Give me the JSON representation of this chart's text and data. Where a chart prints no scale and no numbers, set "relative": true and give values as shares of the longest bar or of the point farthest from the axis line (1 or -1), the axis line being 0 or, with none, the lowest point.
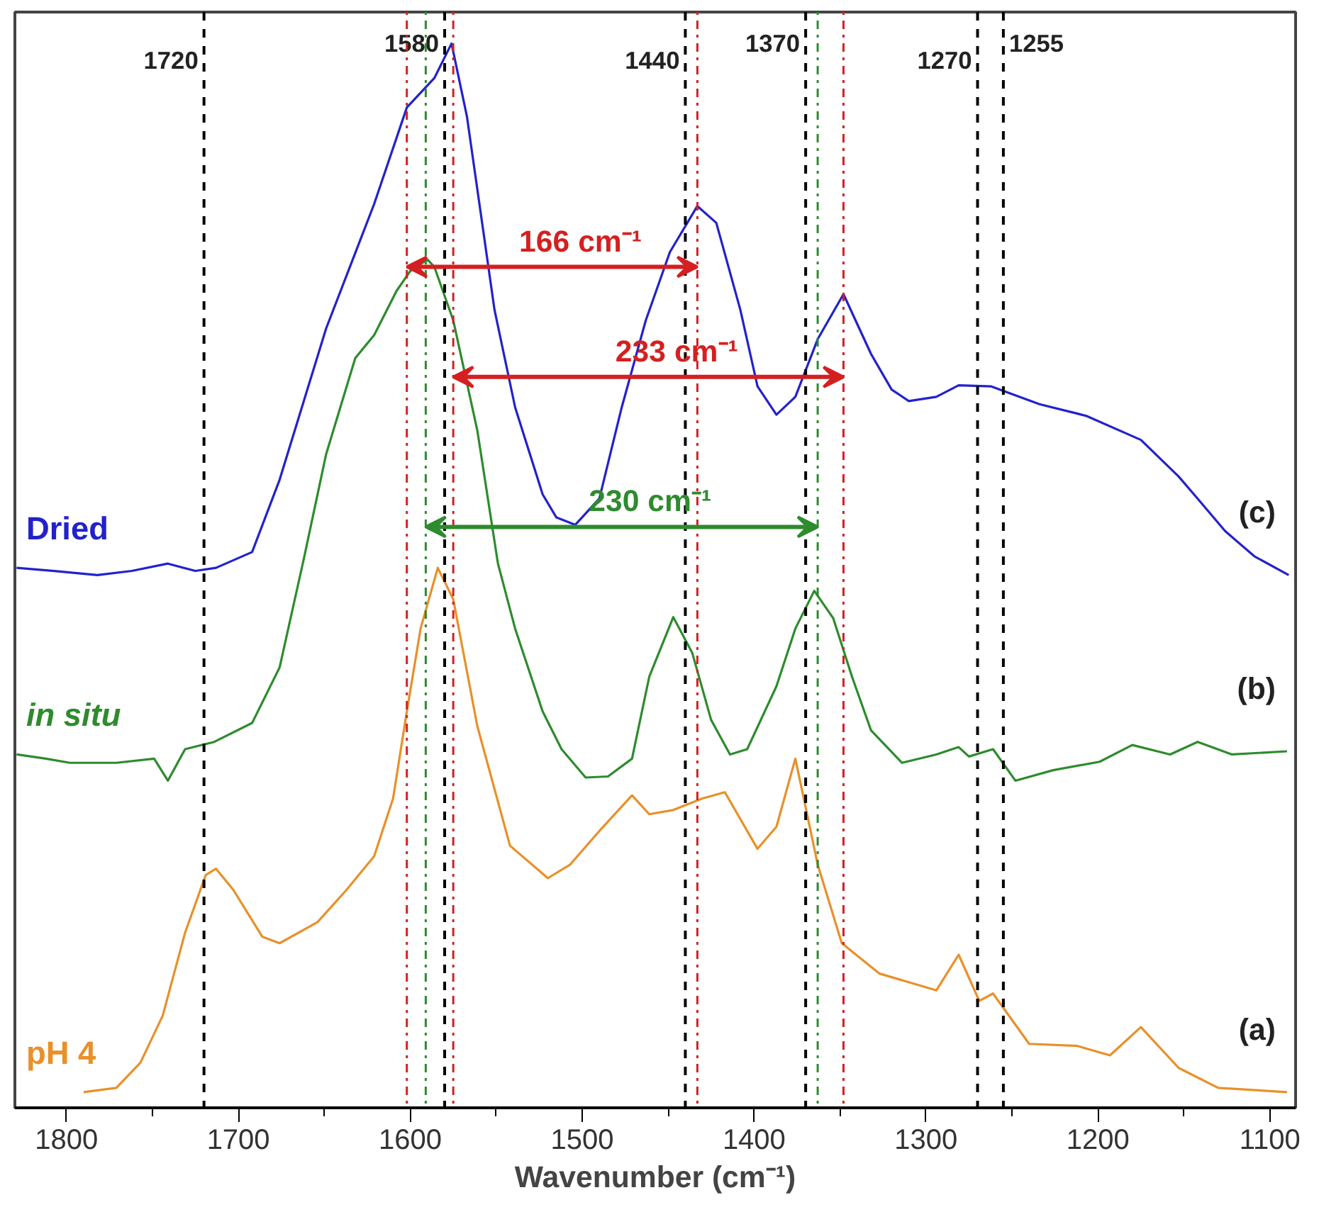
{
  "chart_data": {
    "type": "line",
    "relative": true,
    "xlabel": "Wavenumber (cm⁻¹)",
    "xlim": [
      1830,
      1085
    ],
    "xticks": [
      1800,
      {
        "value": 1750,
        "label": null
      },
      1700,
      {
        "value": 1650,
        "label": null
      },
      1600,
      {
        "value": 1550,
        "label": null
      },
      1500,
      {
        "value": 1450,
        "label": null
      },
      1400,
      {
        "value": 1350,
        "label": null
      },
      1300,
      {
        "value": 1250,
        "label": null
      },
      1200,
      {
        "value": 1150,
        "label": null
      },
      1100
    ],
    "grid": false,
    "line_style": "solid",
    "marker": "none",
    "series": [
      {
        "name": "Dried",
        "color": "#2222cc",
        "x": [
          1829,
          1807,
          1782,
          1762,
          1741,
          1725,
          1713,
          1692,
          1676,
          1649,
          1621,
          1602,
          1586,
          1576,
          1567,
          1559,
          1551,
          1539,
          1523,
          1515,
          1504,
          1490,
          1477,
          1463,
          1449,
          1433,
          1422,
          1408,
          1398,
          1387,
          1376,
          1363,
          1348,
          1332,
          1320,
          1310,
          1294,
          1281,
          1262,
          1234,
          1207,
          1175,
          1153,
          1142,
          1126,
          1109,
          1089
        ],
        "values": [
          0.5,
          0.497,
          0.493,
          0.497,
          0.504,
          0.497,
          0.5,
          0.515,
          0.584,
          0.728,
          0.847,
          0.939,
          0.967,
          1.0,
          0.93,
          0.838,
          0.746,
          0.653,
          0.57,
          0.548,
          0.541,
          0.566,
          0.653,
          0.736,
          0.801,
          0.845,
          0.829,
          0.746,
          0.673,
          0.646,
          0.663,
          0.718,
          0.761,
          0.704,
          0.67,
          0.659,
          0.663,
          0.674,
          0.673,
          0.656,
          0.645,
          0.622,
          0.587,
          0.566,
          0.535,
          0.511,
          0.493
        ]
      },
      {
        "name": "in situ",
        "color": "#2e8b2e",
        "x": [
          1829,
          1812,
          1798,
          1771,
          1749,
          1741,
          1731,
          1714,
          1692,
          1676,
          1662,
          1649,
          1632,
          1621,
          1608,
          1600,
          1590,
          1586,
          1575,
          1561,
          1549,
          1539,
          1523,
          1512,
          1498,
          1485,
          1471,
          1461,
          1447,
          1436,
          1425,
          1414,
          1404,
          1387,
          1376,
          1365,
          1354,
          1343,
          1332,
          1314,
          1294,
          1281,
          1275,
          1261,
          1248,
          1226,
          1199,
          1180,
          1158,
          1142,
          1122,
          1090
        ],
        "values": [
          0.322,
          0.318,
          0.314,
          0.314,
          0.318,
          0.297,
          0.327,
          0.334,
          0.352,
          0.405,
          0.508,
          0.608,
          0.7,
          0.722,
          0.764,
          0.783,
          0.794,
          0.787,
          0.736,
          0.631,
          0.504,
          0.442,
          0.363,
          0.327,
          0.3,
          0.301,
          0.318,
          0.396,
          0.453,
          0.419,
          0.355,
          0.322,
          0.327,
          0.387,
          0.442,
          0.478,
          0.452,
          0.396,
          0.345,
          0.314,
          0.322,
          0.329,
          0.32,
          0.327,
          0.297,
          0.307,
          0.315,
          0.331,
          0.322,
          0.334,
          0.322,
          0.325
        ]
      },
      {
        "name": "pH 4",
        "color": "#e8902a",
        "x": [
          1790,
          1771,
          1757,
          1744,
          1731,
          1719,
          1713,
          1703,
          1686,
          1676,
          1654,
          1637,
          1621,
          1610,
          1602,
          1594,
          1584,
          1575,
          1561,
          1542,
          1520,
          1507,
          1490,
          1471,
          1461,
          1447,
          1430,
          1417,
          1398,
          1387,
          1376,
          1363,
          1349,
          1327,
          1294,
          1281,
          1269,
          1261,
          1240,
          1212,
          1193,
          1175,
          1153,
          1130,
          1090
        ],
        "values": [
          0,
          0.004,
          0.028,
          0.073,
          0.152,
          0.207,
          0.213,
          0.193,
          0.148,
          0.142,
          0.162,
          0.193,
          0.225,
          0.28,
          0.363,
          0.442,
          0.5,
          0.47,
          0.349,
          0.235,
          0.204,
          0.217,
          0.249,
          0.283,
          0.265,
          0.269,
          0.28,
          0.286,
          0.232,
          0.253,
          0.318,
          0.217,
          0.142,
          0.113,
          0.097,
          0.131,
          0.087,
          0.094,
          0.046,
          0.044,
          0.035,
          0.062,
          0.023,
          0.004,
          0
        ]
      }
    ],
    "ref_lines": [
      {
        "axis": "x",
        "value": 1720,
        "label": "1720",
        "color": "#000000",
        "line_style": "dashed"
      },
      {
        "axis": "x",
        "value": 1580,
        "label": "1580",
        "color": "#000000",
        "line_style": "dashed"
      },
      {
        "axis": "x",
        "value": 1440,
        "label": "1440",
        "color": "#000000",
        "line_style": "dashed"
      },
      {
        "axis": "x",
        "value": 1370,
        "label": "1370",
        "color": "#000000",
        "line_style": "dashed"
      },
      {
        "axis": "x",
        "value": 1270,
        "label": "1270",
        "color": "#000000",
        "line_style": "dashed"
      },
      {
        "axis": "x",
        "value": 1255,
        "label": "1255",
        "color": "#000000",
        "line_style": "dashed"
      },
      {
        "axis": "x",
        "value": 1602,
        "color": "#d42020",
        "line_style": "dotted"
      },
      {
        "axis": "x",
        "value": 1575,
        "color": "#d42020",
        "line_style": "dotted"
      },
      {
        "axis": "x",
        "value": 1433,
        "color": "#d42020",
        "line_style": "dotted"
      },
      {
        "axis": "x",
        "value": 1348,
        "color": "#d42020",
        "line_style": "dotted"
      },
      {
        "axis": "x",
        "value": 1591,
        "color": "#2e8b2e",
        "line_style": "dotted"
      },
      {
        "axis": "x",
        "value": 1363,
        "color": "#2e8b2e",
        "line_style": "dotted"
      }
    ],
    "annotations": [
      "166 cm⁻¹",
      "233 cm⁻¹",
      "230 cm⁻¹",
      "(c)",
      "(b)",
      "(a)"
    ]
  }
}
